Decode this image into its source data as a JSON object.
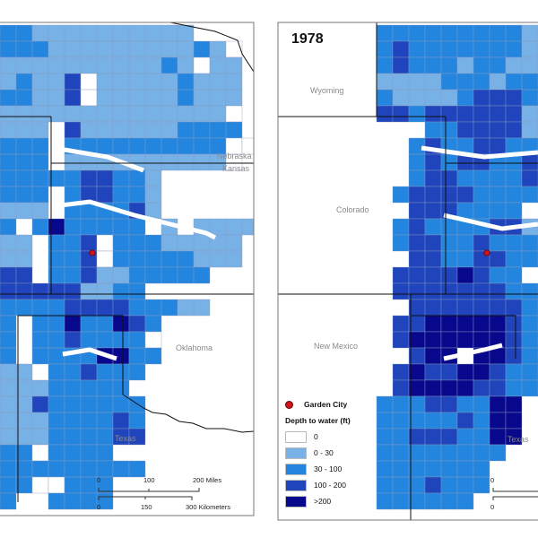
{
  "left_panel": {
    "state_labels": {
      "nebraska": "Nebraska",
      "kansas": "Kansas",
      "oklahoma": "Oklahoma",
      "texas": "Texas"
    },
    "scale_bar": {
      "miles": [
        "0",
        "100",
        "200 Miles"
      ],
      "km": [
        "0",
        "150",
        "300 Kilometers"
      ]
    }
  },
  "right_panel": {
    "year_title": "1978",
    "state_labels": {
      "wyoming": "Wyoming",
      "colorado": "Colorado",
      "new_mexico": "New Mexico",
      "texas": "Texas"
    },
    "scale_bar": {
      "miles_start": "0",
      "km_start": "0"
    }
  },
  "legend": {
    "point_label": "Garden City",
    "title": "Depth to water (ft)",
    "classes": [
      {
        "label": "0",
        "color": "#ffffff"
      },
      {
        "label": "0 - 30",
        "color": "#78b1e6"
      },
      {
        "label": "30 - 100",
        "color": "#2385de"
      },
      {
        "label": "100 - 200",
        "color": "#1f44bb"
      },
      {
        "label": ">200",
        "color": "#08088c"
      }
    ]
  }
}
